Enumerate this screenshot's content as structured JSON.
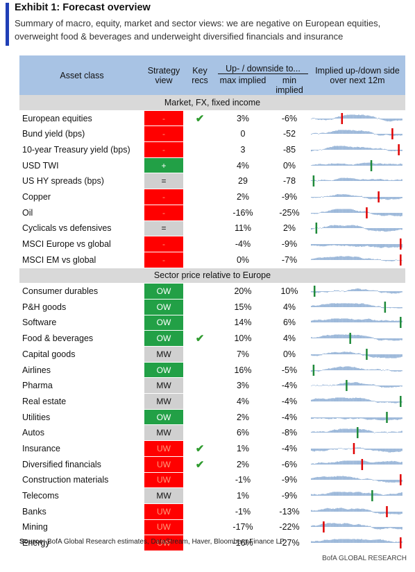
{
  "title": "Exhibit 1: Forecast overview",
  "subtitle": "Summary of macro, equity, market and sector views: we are negative on European equities, overweight food & beverages and underweight diversified financials and insurance",
  "header": {
    "asset_class": "Asset class",
    "strategy_view": "Strategy view",
    "key_recs": "Key recs",
    "up_downside": "Up- / downside to...",
    "max_implied": "max implied",
    "min_implied": "min implied",
    "implied_updown": "Implied up-/down side over next 12m"
  },
  "sections": [
    {
      "label": "Market, FX, fixed income",
      "rows": [
        {
          "asset": "European equities",
          "view": "-",
          "view_color": "#ff0000",
          "key": true,
          "max": "3%",
          "min": "-6%",
          "marker": 0.33
        },
        {
          "asset": "Bund yield (bps)",
          "view": "-",
          "view_color": "#ff0000",
          "key": false,
          "max": "0",
          "min": "-52",
          "marker": 0.88
        },
        {
          "asset": "10-year Treasury yield (bps)",
          "view": "-",
          "view_color": "#ff0000",
          "key": false,
          "max": "3",
          "min": "-85",
          "marker": 0.95
        },
        {
          "asset": "USD TWI",
          "view": "+",
          "view_color": "#22a046",
          "key": false,
          "max": "4%",
          "min": "0%",
          "marker": 0.65
        },
        {
          "asset": "US HY spreads (bps)",
          "view": "=",
          "view_color": "#d0d0d0",
          "key": false,
          "max": "29",
          "min": "-78",
          "marker": 0.02
        },
        {
          "asset": "Copper",
          "view": "-",
          "view_color": "#ff0000",
          "key": false,
          "max": "2%",
          "min": "-9%",
          "marker": 0.73
        },
        {
          "asset": "Oil",
          "view": "-",
          "view_color": "#ff0000",
          "key": false,
          "max": "-16%",
          "min": "-25%",
          "marker": 0.6
        },
        {
          "asset": "Cyclicals vs defensives",
          "view": "=",
          "view_color": "#d0d0d0",
          "key": false,
          "max": "11%",
          "min": "2%",
          "marker": 0.05
        },
        {
          "asset": "MSCI Europe vs global",
          "view": "-",
          "view_color": "#ff0000",
          "key": false,
          "max": "-4%",
          "min": "-9%",
          "marker": 0.97
        },
        {
          "asset": "MSCI EM vs global",
          "view": "-",
          "view_color": "#ff0000",
          "key": false,
          "max": "0%",
          "min": "-7%",
          "marker": 0.97
        }
      ]
    },
    {
      "label": "Sector price relative to Europe",
      "rows": [
        {
          "asset": "Consumer durables",
          "view": "OW",
          "view_color": "#22a046",
          "key": false,
          "max": "20%",
          "min": "10%",
          "marker": 0.03
        },
        {
          "asset": "P&H goods",
          "view": "OW",
          "view_color": "#22a046",
          "key": false,
          "max": "15%",
          "min": "4%",
          "marker": 0.8
        },
        {
          "asset": "Software",
          "view": "OW",
          "view_color": "#22a046",
          "key": false,
          "max": "14%",
          "min": "6%",
          "marker": 0.97
        },
        {
          "asset": "Food & beverages",
          "view": "OW",
          "view_color": "#22a046",
          "key": true,
          "max": "10%",
          "min": "4%",
          "marker": 0.42
        },
        {
          "asset": "Capital goods",
          "view": "MW",
          "view_color": "#d0d0d0",
          "key": false,
          "max": "7%",
          "min": "0%",
          "marker": 0.6
        },
        {
          "asset": "Airlines",
          "view": "OW",
          "view_color": "#22a046",
          "key": false,
          "max": "16%",
          "min": "-5%",
          "marker": 0.02
        },
        {
          "asset": "Pharma",
          "view": "MW",
          "view_color": "#d0d0d0",
          "key": false,
          "max": "3%",
          "min": "-4%",
          "marker": 0.38
        },
        {
          "asset": "Real estate",
          "view": "MW",
          "view_color": "#d0d0d0",
          "key": false,
          "max": "4%",
          "min": "-4%",
          "marker": 0.97
        },
        {
          "asset": "Utilities",
          "view": "OW",
          "view_color": "#22a046",
          "key": false,
          "max": "2%",
          "min": "-4%",
          "marker": 0.82
        },
        {
          "asset": "Autos",
          "view": "MW",
          "view_color": "#d0d0d0",
          "key": false,
          "max": "6%",
          "min": "-8%",
          "marker": 0.5
        },
        {
          "asset": "Insurance",
          "view": "UW",
          "view_color": "#ff0000",
          "key": true,
          "max": "1%",
          "min": "-4%",
          "marker": 0.46
        },
        {
          "asset": "Diversified financials",
          "view": "UW",
          "view_color": "#ff0000",
          "key": true,
          "max": "2%",
          "min": "-6%",
          "marker": 0.55
        },
        {
          "asset": "Construction materials",
          "view": "UW",
          "view_color": "#ff0000",
          "key": false,
          "max": "-1%",
          "min": "-9%",
          "marker": 0.97
        },
        {
          "asset": "Telecoms",
          "view": "MW",
          "view_color": "#d0d0d0",
          "key": false,
          "max": "1%",
          "min": "-9%",
          "marker": 0.66
        },
        {
          "asset": "Banks",
          "view": "UW",
          "view_color": "#ff0000",
          "key": false,
          "max": "-1%",
          "min": "-13%",
          "marker": 0.82
        },
        {
          "asset": "Mining",
          "view": "UW",
          "view_color": "#ff0000",
          "key": false,
          "max": "-17%",
          "min": "-22%",
          "marker": 0.13
        },
        {
          "asset": "Energy",
          "view": "UW",
          "view_color": "#ff0000",
          "key": false,
          "max": "-16%",
          "min": "-27%",
          "marker": 0.97
        }
      ]
    }
  ],
  "source_label": "Source:",
  "source_text": "BofA Global Research estimates, DataStream, Haver, Bloomberg Finance LP",
  "brand": "BofA GLOBAL RESEARCH",
  "colors": {
    "header_bg": "#a8c3e4",
    "section_bg": "#d9d9d9",
    "neg": "#ff0000",
    "pos": "#22a046",
    "neutral": "#d0d0d0",
    "spark": "#95b3d7",
    "check": "#2e9b2e"
  },
  "chart_data": {
    "type": "table",
    "title": "Exhibit 1: Forecast overview",
    "columns": [
      "Asset class",
      "Strategy view",
      "Key recs",
      "max implied",
      "min implied",
      "Implied up-/down side over next 12m"
    ],
    "marker_note_unit": "marker = position of current value across sparkline (0-1)"
  }
}
